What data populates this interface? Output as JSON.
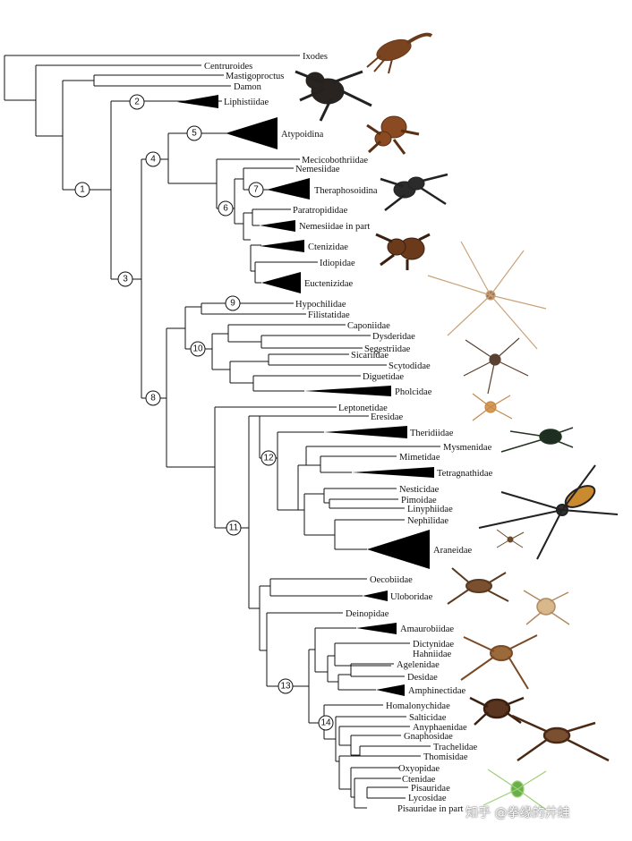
{
  "taxa": {
    "ixodes": "Ixodes",
    "centruroides": "Centruroides",
    "mastigoproctus": "Mastigoproctus",
    "damon": "Damon",
    "liphistiidae": "Liphistiidae",
    "atypoidina": "Atypoidina",
    "mecicobothriidae": "Mecicobothriidae",
    "nemesiidae": "Nemesiidae",
    "theraphosoidina": "Theraphosoidina",
    "paratropididae": "Paratropididae",
    "nemesiidae_part": "Nemesiidae in part",
    "ctenizidae": "Ctenizidae",
    "idiopidae": "Idiopidae",
    "euctenizidae": "Euctenizidae",
    "hypochilidae": "Hypochilidae",
    "filistatidae": "Filistatidae",
    "caponiidae": "Caponiidae",
    "dysderidae": "Dysderidae",
    "segestriidae": "Segestriidae",
    "sicariidae": "Sicariidae",
    "scytodidae": "Scytodidae",
    "diguetidae": "Diguetidae",
    "pholcidae": "Pholcidae",
    "leptonetidae": "Leptonetidae",
    "eresidae": "Eresidae",
    "theridiidae": "Theridiidae",
    "mysmenidae": "Mysmenidae",
    "mimetidae": "Mimetidae",
    "tetragnathidae": "Tetragnathidae",
    "nesticidae": "Nesticidae",
    "pimoidae": "Pimoidae",
    "linyphiidae": "Linyphiidae",
    "nephilidae": "Nephilidae",
    "araneidae": "Araneidae",
    "oecobiidae": "Oecobiidae",
    "uloboridae": "Uloboridae",
    "deinopidae": "Deinopidae",
    "amaurobiidae": "Amaurobiidae",
    "dictynidae": "Dictynidae",
    "hahniidae": "Hahniidae",
    "agelenidae": "Agelenidae",
    "desidae": "Desidae",
    "amphinectidae": "Amphinectidae",
    "homalonychidae": "Homalonychidae",
    "salticidae": "Salticidae",
    "anyphaenidae": "Anyphaenidae",
    "gnaphosidae": "Gnaphosidae",
    "trachelidae": "Trachelidae",
    "thomisidae": "Thomisidae",
    "oxyopidae": "Oxyopidae",
    "ctenidae": "Ctenidae",
    "pisauridae": "Pisauridae",
    "lycosidae": "Lycosidae",
    "pisauridae_part": "Pisauridae in part"
  },
  "nodes": [
    "1",
    "2",
    "3",
    "4",
    "5",
    "6",
    "7",
    "8",
    "9",
    "10",
    "11",
    "12",
    "13",
    "14"
  ],
  "watermark": "知乎 @拳缘的井蛙",
  "colors": {
    "line": "#111111",
    "wedge": "#000000",
    "node_fill": "#ffffff"
  }
}
